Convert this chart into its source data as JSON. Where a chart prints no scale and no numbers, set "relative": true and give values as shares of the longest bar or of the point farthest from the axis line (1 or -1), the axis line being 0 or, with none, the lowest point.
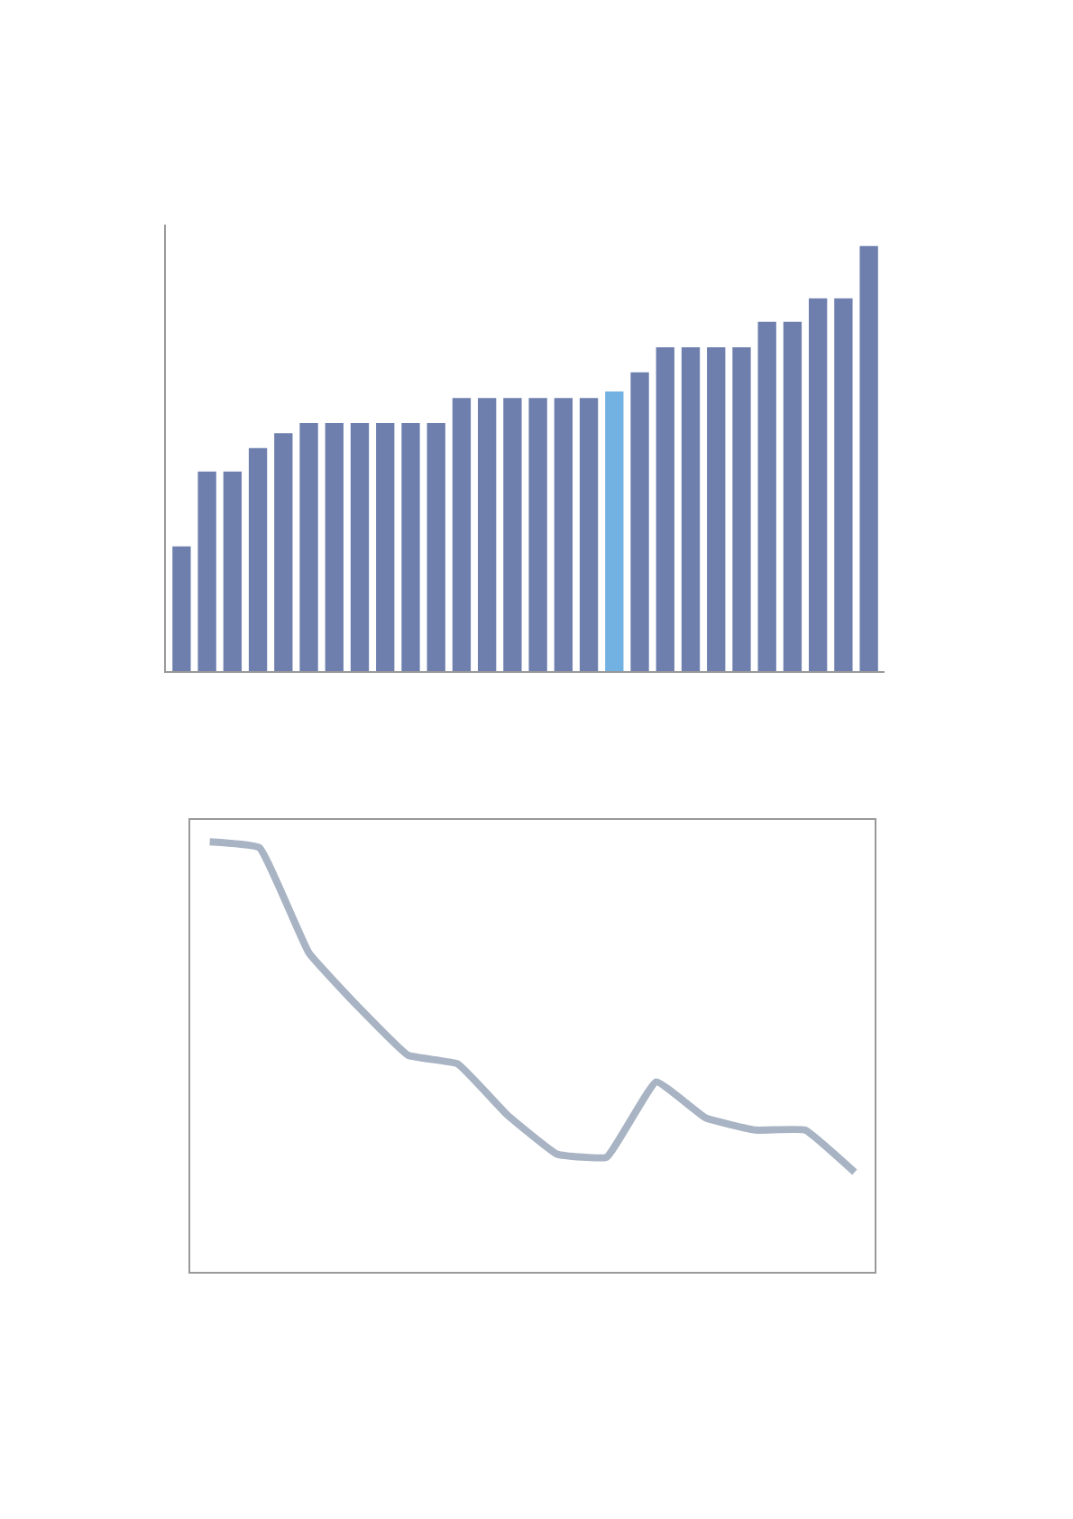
{
  "chart_data": [
    {
      "type": "bar",
      "relative": true,
      "categories": [
        null,
        null,
        null,
        null,
        null,
        null,
        null,
        null,
        null,
        null,
        null,
        null,
        null,
        null,
        null,
        null,
        null,
        null,
        null,
        null,
        null,
        null,
        null,
        null,
        null,
        null,
        null,
        null
      ],
      "values": [
        0.294,
        0.47,
        0.47,
        0.525,
        0.56,
        0.584,
        0.584,
        0.584,
        0.584,
        0.584,
        0.584,
        0.643,
        0.643,
        0.643,
        0.643,
        0.643,
        0.643,
        0.658,
        0.703,
        0.762,
        0.762,
        0.762,
        0.762,
        0.822,
        0.822,
        0.877,
        0.877,
        1
      ],
      "colors": [
        "#6e7fae",
        "#6e7fae",
        "#6e7fae",
        "#6e7fae",
        "#6e7fae",
        "#6e7fae",
        "#6e7fae",
        "#6e7fae",
        "#6e7fae",
        "#6e7fae",
        "#6e7fae",
        "#6e7fae",
        "#6e7fae",
        "#6e7fae",
        "#6e7fae",
        "#6e7fae",
        "#6e7fae",
        "#71b2e2",
        "#6e7fae",
        "#6e7fae",
        "#6e7fae",
        "#6e7fae",
        "#6e7fae",
        "#6e7fae",
        "#6e7fae",
        "#6e7fae",
        "#6e7fae",
        "#6e7fae"
      ]
    },
    {
      "type": "line",
      "relative": true,
      "categories": [
        null,
        null,
        null,
        null,
        null,
        null,
        null,
        null,
        null,
        null,
        null,
        null,
        null,
        null
      ],
      "series": [
        {
          "color": "#a8b3c3",
          "values": [
            1,
            0.986,
            0.741,
            0.615,
            0.503,
            0.483,
            0.364,
            0.273,
            0.266,
            0.441,
            0.357,
            0.329,
            0.329,
            0.231
          ]
        }
      ]
    }
  ]
}
